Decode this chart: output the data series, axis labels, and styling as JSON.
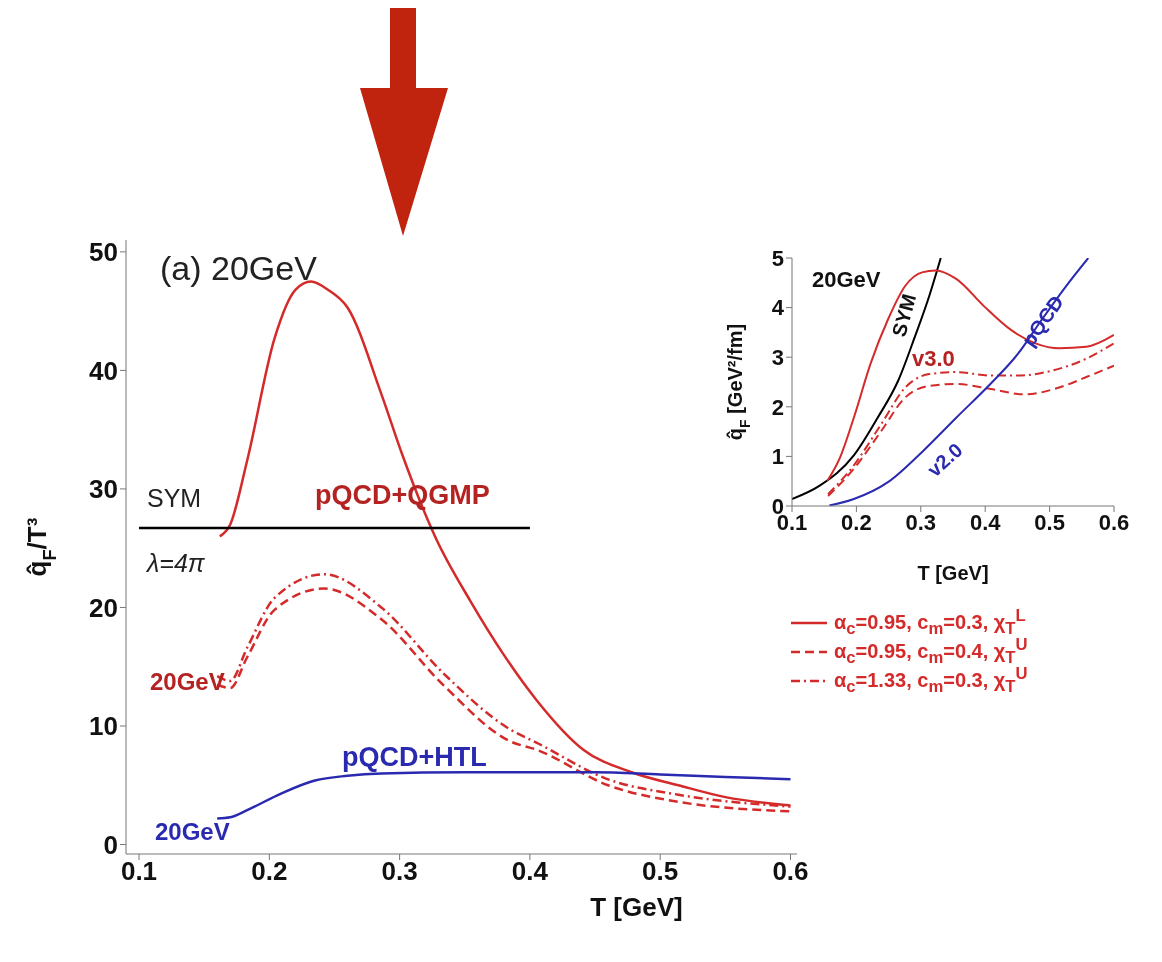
{
  "chart_data": [
    {
      "type": "line",
      "xlabel": "T [GeV]",
      "ylabel": "q̂$_{F}$/T³",
      "xlim": [
        0.09,
        0.605
      ],
      "ylim": [
        -0.8,
        51
      ],
      "xticks": [
        0.1,
        0.2,
        0.3,
        0.4,
        0.5,
        0.6
      ],
      "yticks": [
        0,
        10,
        20,
        30,
        40,
        50
      ],
      "legend": "right",
      "annotations": [
        "(a) 20GeV",
        "SYM",
        "λ=4π",
        "pQCD+QGMP",
        "20GeV",
        "pQCD+HTL",
        "20GeV"
      ],
      "series": [
        {
          "name": "α$_{c}$=0.95, c$_{m}$=0.3, χ$_{T}$$^{L}$",
          "color": "#d42a2a",
          "line_style": "solid",
          "x": [
            0.162,
            0.17,
            0.183,
            0.204,
            0.22,
            0.232,
            0.245,
            0.26,
            0.286,
            0.302,
            0.328,
            0.354,
            0.38,
            0.405,
            0.441,
            0.478,
            0.514,
            0.55,
            0.6
          ],
          "values": [
            26.0,
            27.0,
            32.4,
            42.7,
            46.8,
            47.5,
            46.8,
            45.3,
            38.0,
            32.9,
            25.8,
            20.6,
            16.0,
            12.2,
            8.0,
            6.1,
            5.0,
            4.0,
            3.3
          ]
        },
        {
          "name": "α$_{c}$=0.95, c$_{m}$=0.4, χ$_{T}$$^{U}$",
          "color": "#d42a2a",
          "line_style": "dashed",
          "x": [
            0.16,
            0.17,
            0.183,
            0.204,
            0.242,
            0.286,
            0.334,
            0.385,
            0.405,
            0.46,
            0.514,
            0.6
          ],
          "values": [
            13.5,
            13.2,
            15.8,
            19.8,
            21.6,
            19.0,
            13.4,
            8.7,
            8.0,
            5.0,
            3.6,
            2.8
          ]
        },
        {
          "name": "α$_{c}$=1.33, c$_{m}$=0.3, χ$_{T}$$^{U}$",
          "color": "#d42a2a",
          "line_style": "dashdot",
          "x": [
            0.16,
            0.17,
            0.183,
            0.204,
            0.242,
            0.286,
            0.334,
            0.385,
            0.405,
            0.46,
            0.514,
            0.6
          ],
          "values": [
            14.2,
            13.8,
            16.6,
            20.8,
            22.8,
            20.0,
            14.4,
            9.7,
            8.6,
            5.5,
            4.2,
            3.2
          ]
        },
        {
          "color": "#2a2ab0",
          "line_style": "solid",
          "x": [
            0.16,
            0.17,
            0.183,
            0.209,
            0.235,
            0.26,
            0.286,
            0.35,
            0.45,
            0.5,
            0.55,
            0.6
          ],
          "values": [
            2.2,
            2.3,
            2.9,
            4.3,
            5.4,
            5.8,
            6.0,
            6.1,
            6.1,
            5.9,
            5.7,
            5.5
          ]
        },
        {
          "color": "#000000",
          "line_style": "solid",
          "x": [
            0.1,
            0.4
          ],
          "values": [
            26.7,
            26.7
          ]
        }
      ]
    },
    {
      "type": "line",
      "xlabel": "T [GeV]",
      "ylabel": "q̂$_{F}$ [GeV²/fm]",
      "xlim": [
        0.1,
        0.6
      ],
      "ylim": [
        0,
        5
      ],
      "xticks": [
        0.1,
        0.2,
        0.3,
        0.4,
        0.5,
        0.6
      ],
      "yticks": [
        0,
        1,
        2,
        3,
        4,
        5
      ],
      "annotations": [
        "20GeV",
        "SYM",
        "v3.0",
        "pQCD",
        "v2.0"
      ],
      "series": [
        {
          "color": "#000000",
          "line_style": "solid",
          "x": [
            0.1,
            0.143,
            0.196,
            0.233,
            0.265,
            0.291,
            0.313,
            0.331
          ],
          "values": [
            0.14,
            0.41,
            1.02,
            1.78,
            2.53,
            3.42,
            4.23,
            5.0
          ]
        },
        {
          "color": "#d42a2a",
          "line_style": "solid",
          "x": [
            0.155,
            0.174,
            0.196,
            0.222,
            0.249,
            0.276,
            0.302,
            0.323,
            0.355,
            0.398,
            0.44,
            0.478,
            0.515,
            0.557,
            0.6
          ],
          "values": [
            0.51,
            0.96,
            1.78,
            2.87,
            3.76,
            4.44,
            4.71,
            4.75,
            4.58,
            4.03,
            3.55,
            3.28,
            3.18,
            3.21,
            3.45
          ]
        },
        {
          "color": "#d42a2a",
          "line_style": "dashdot",
          "x": [
            0.156,
            0.196,
            0.238,
            0.276,
            0.313,
            0.355,
            0.408,
            0.451,
            0.504,
            0.557,
            0.6
          ],
          "values": [
            0.24,
            0.82,
            1.64,
            2.39,
            2.66,
            2.7,
            2.63,
            2.63,
            2.73,
            2.97,
            3.28
          ]
        },
        {
          "color": "#d42a2a",
          "line_style": "dashed",
          "x": [
            0.156,
            0.196,
            0.238,
            0.276,
            0.313,
            0.355,
            0.408,
            0.462,
            0.515,
            0.557,
            0.6
          ],
          "values": [
            0.2,
            0.75,
            1.5,
            2.19,
            2.42,
            2.46,
            2.36,
            2.25,
            2.39,
            2.6,
            2.83
          ]
        },
        {
          "color": "#2a2ab0",
          "line_style": "solid",
          "x": [
            0.158,
            0.196,
            0.249,
            0.302,
            0.355,
            0.408,
            0.451,
            0.488,
            0.526,
            0.56
          ],
          "values": [
            0.01,
            0.14,
            0.48,
            1.09,
            1.78,
            2.46,
            3.07,
            3.76,
            4.44,
            5.0
          ]
        }
      ]
    }
  ]
}
